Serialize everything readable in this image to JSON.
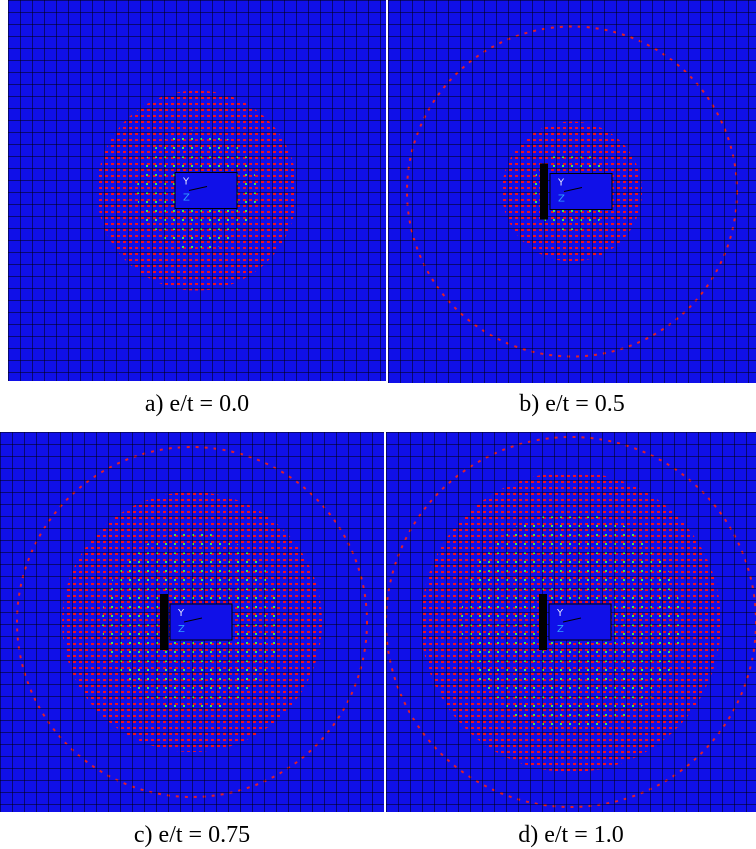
{
  "panels": [
    {
      "caption": "a) e/t = 0.0",
      "triad": [
        "Y",
        "Z"
      ]
    },
    {
      "caption": "b) e/t = 0.5",
      "triad": [
        "Y",
        "Z"
      ]
    },
    {
      "caption": "c) e/t = 0.75",
      "triad": [
        "Y",
        "Z"
      ]
    },
    {
      "caption": "d) e/t = 1.0",
      "triad": [
        "Y",
        "Z"
      ]
    }
  ]
}
